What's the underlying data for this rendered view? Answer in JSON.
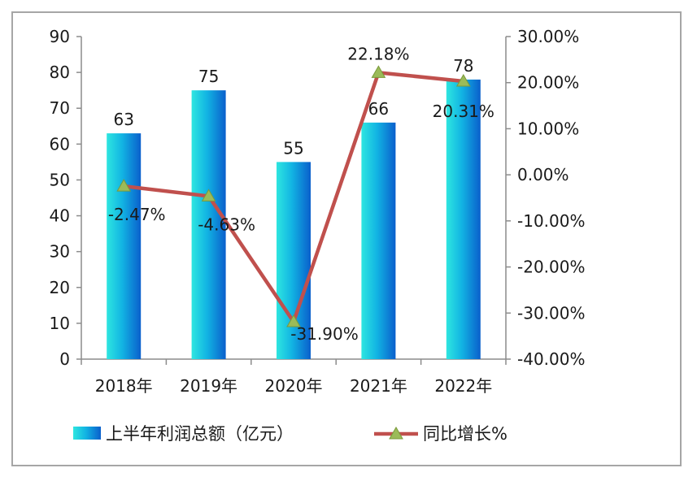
{
  "chart_data": {
    "type": "bar+line",
    "categories": [
      "2018年",
      "2019年",
      "2020年",
      "2021年",
      "2022年"
    ],
    "series": [
      {
        "name": "上半年利润总额（亿元）",
        "type": "bar",
        "axis": "left",
        "values": [
          63,
          75,
          55,
          66,
          78
        ],
        "labels": [
          "63",
          "75",
          "55",
          "66",
          "78"
        ],
        "color": "#1a9fd8"
      },
      {
        "name": "同比增长%",
        "type": "line",
        "axis": "right",
        "values": [
          -2.47,
          -4.63,
          -31.9,
          22.18,
          20.31
        ],
        "labels": [
          "-2.47%",
          "-4.63%",
          "-31.90%",
          "22.18%",
          "20.31%"
        ],
        "line_color": "#c0504d",
        "marker_color": "#9bbb59"
      }
    ],
    "left_axis": {
      "ylim": [
        0,
        90
      ],
      "ticks": [
        0,
        10,
        20,
        30,
        40,
        50,
        60,
        70,
        80,
        90
      ],
      "tick_labels": [
        "0",
        "10",
        "20",
        "30",
        "40",
        "50",
        "60",
        "70",
        "80",
        "90"
      ]
    },
    "right_axis": {
      "ylim": [
        -40,
        30
      ],
      "ticks": [
        -40,
        -30,
        -20,
        -10,
        0,
        10,
        20,
        30
      ],
      "tick_labels": [
        "-40.00%",
        "-30.00%",
        "-20.00%",
        "-10.00%",
        "0.00%",
        "10.00%",
        "20.00%",
        "30.00%"
      ]
    },
    "grid": false,
    "legend_position": "bottom",
    "legend": [
      "上半年利润总额（亿元）",
      "同比增长%"
    ]
  }
}
